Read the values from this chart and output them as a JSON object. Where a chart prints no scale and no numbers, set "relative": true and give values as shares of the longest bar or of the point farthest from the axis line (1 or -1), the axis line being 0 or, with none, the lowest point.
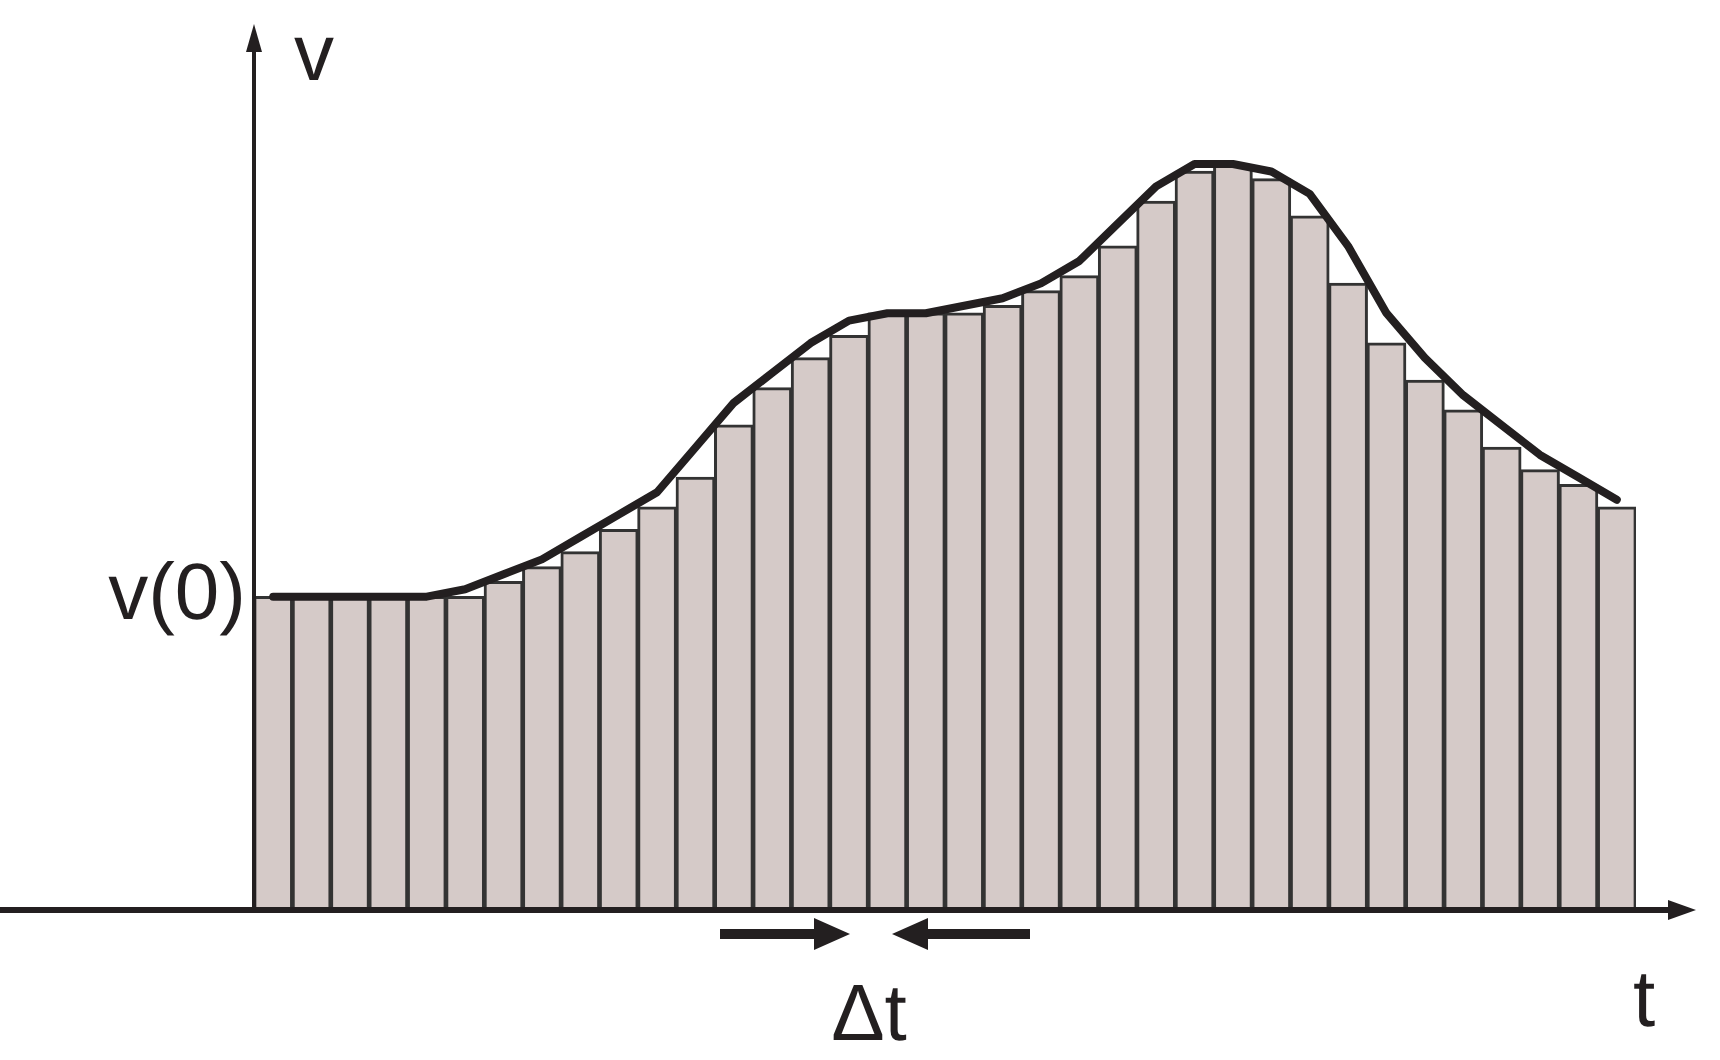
{
  "chart_data": [
    {
      "type": "bar",
      "relative": true,
      "xlabel": "t",
      "ylabel": "v",
      "categories": [
        null,
        null,
        null,
        null,
        null,
        null,
        null,
        null,
        null,
        null,
        null,
        null,
        null,
        null,
        null,
        null,
        null,
        null,
        null,
        null,
        null,
        null,
        null,
        null,
        null,
        null,
        null,
        null,
        null,
        null,
        null,
        null,
        null,
        null,
        null,
        null
      ],
      "series": [
        {
          "color": "#d5cac8",
          "values": [
            0.42,
            0.42,
            0.42,
            0.42,
            0.42,
            0.42,
            0.44,
            0.46,
            0.48,
            0.51,
            0.54,
            0.58,
            0.65,
            0.7,
            0.74,
            0.77,
            0.8,
            0.8,
            0.8,
            0.81,
            0.83,
            0.85,
            0.89,
            0.95,
            0.99,
            1,
            0.98,
            0.93,
            0.84,
            0.76,
            0.71,
            0.67,
            0.62,
            0.59,
            0.57,
            0.54
          ]
        }
      ],
      "annotations": [
        "v(0)",
        "Δt"
      ]
    },
    {
      "type": "line",
      "relative": true,
      "marker": "none",
      "categories": [
        null,
        null,
        null,
        null,
        null,
        null,
        null,
        null,
        null,
        null,
        null,
        null,
        null,
        null,
        null,
        null,
        null,
        null,
        null,
        null,
        null,
        null,
        null,
        null,
        null,
        null,
        null,
        null,
        null,
        null,
        null,
        null,
        null,
        null,
        null,
        null
      ],
      "series": [
        {
          "color": "#231f20",
          "values": [
            0.42,
            0.42,
            0.42,
            0.42,
            0.42,
            0.43,
            0.45,
            0.47,
            0.5,
            0.53,
            0.56,
            0.62,
            0.68,
            0.72,
            0.76,
            0.79,
            0.8,
            0.8,
            0.81,
            0.82,
            0.84,
            0.87,
            0.92,
            0.97,
            1,
            1,
            0.99,
            0.96,
            0.89,
            0.8,
            0.74,
            0.69,
            0.65,
            0.61,
            0.58,
            0.55
          ]
        }
      ]
    }
  ]
}
